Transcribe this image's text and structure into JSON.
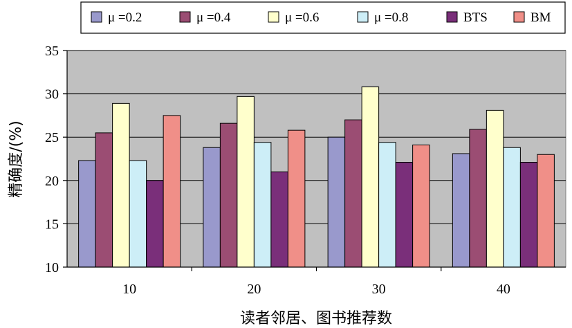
{
  "chart_data": {
    "type": "bar",
    "categories": [
      "10",
      "20",
      "30",
      "40"
    ],
    "series": [
      {
        "name": "μ =0.2",
        "color": "#9999cc",
        "values": [
          22.3,
          23.8,
          25.0,
          23.1
        ]
      },
      {
        "name": "μ =0.4",
        "color": "#9b4d73",
        "values": [
          25.5,
          26.6,
          27.0,
          25.9
        ]
      },
      {
        "name": "μ =0.6",
        "color": "#ffffcc",
        "values": [
          28.9,
          29.7,
          30.8,
          28.1
        ]
      },
      {
        "name": "μ =0.8",
        "color": "#cdeef7",
        "values": [
          22.3,
          24.4,
          24.4,
          23.8
        ]
      },
      {
        "name": "BTS",
        "color": "#7a2f7a",
        "values": [
          20.0,
          21.0,
          22.1,
          22.1
        ]
      },
      {
        "name": "BM",
        "color": "#f08f88",
        "values": [
          27.5,
          25.8,
          24.1,
          23.0
        ]
      }
    ],
    "xlabel": "读者邻居、图书推荐数",
    "ylabel": "精确度/(%)",
    "ylim": [
      10,
      35
    ],
    "yticks": [
      "10",
      "15",
      "20",
      "25",
      "30",
      "35"
    ],
    "grid": true,
    "legend": "top"
  },
  "style": {
    "plot_bg": "#c0c0c0",
    "grid_color": "#000000",
    "bar_edge": "#000000"
  }
}
